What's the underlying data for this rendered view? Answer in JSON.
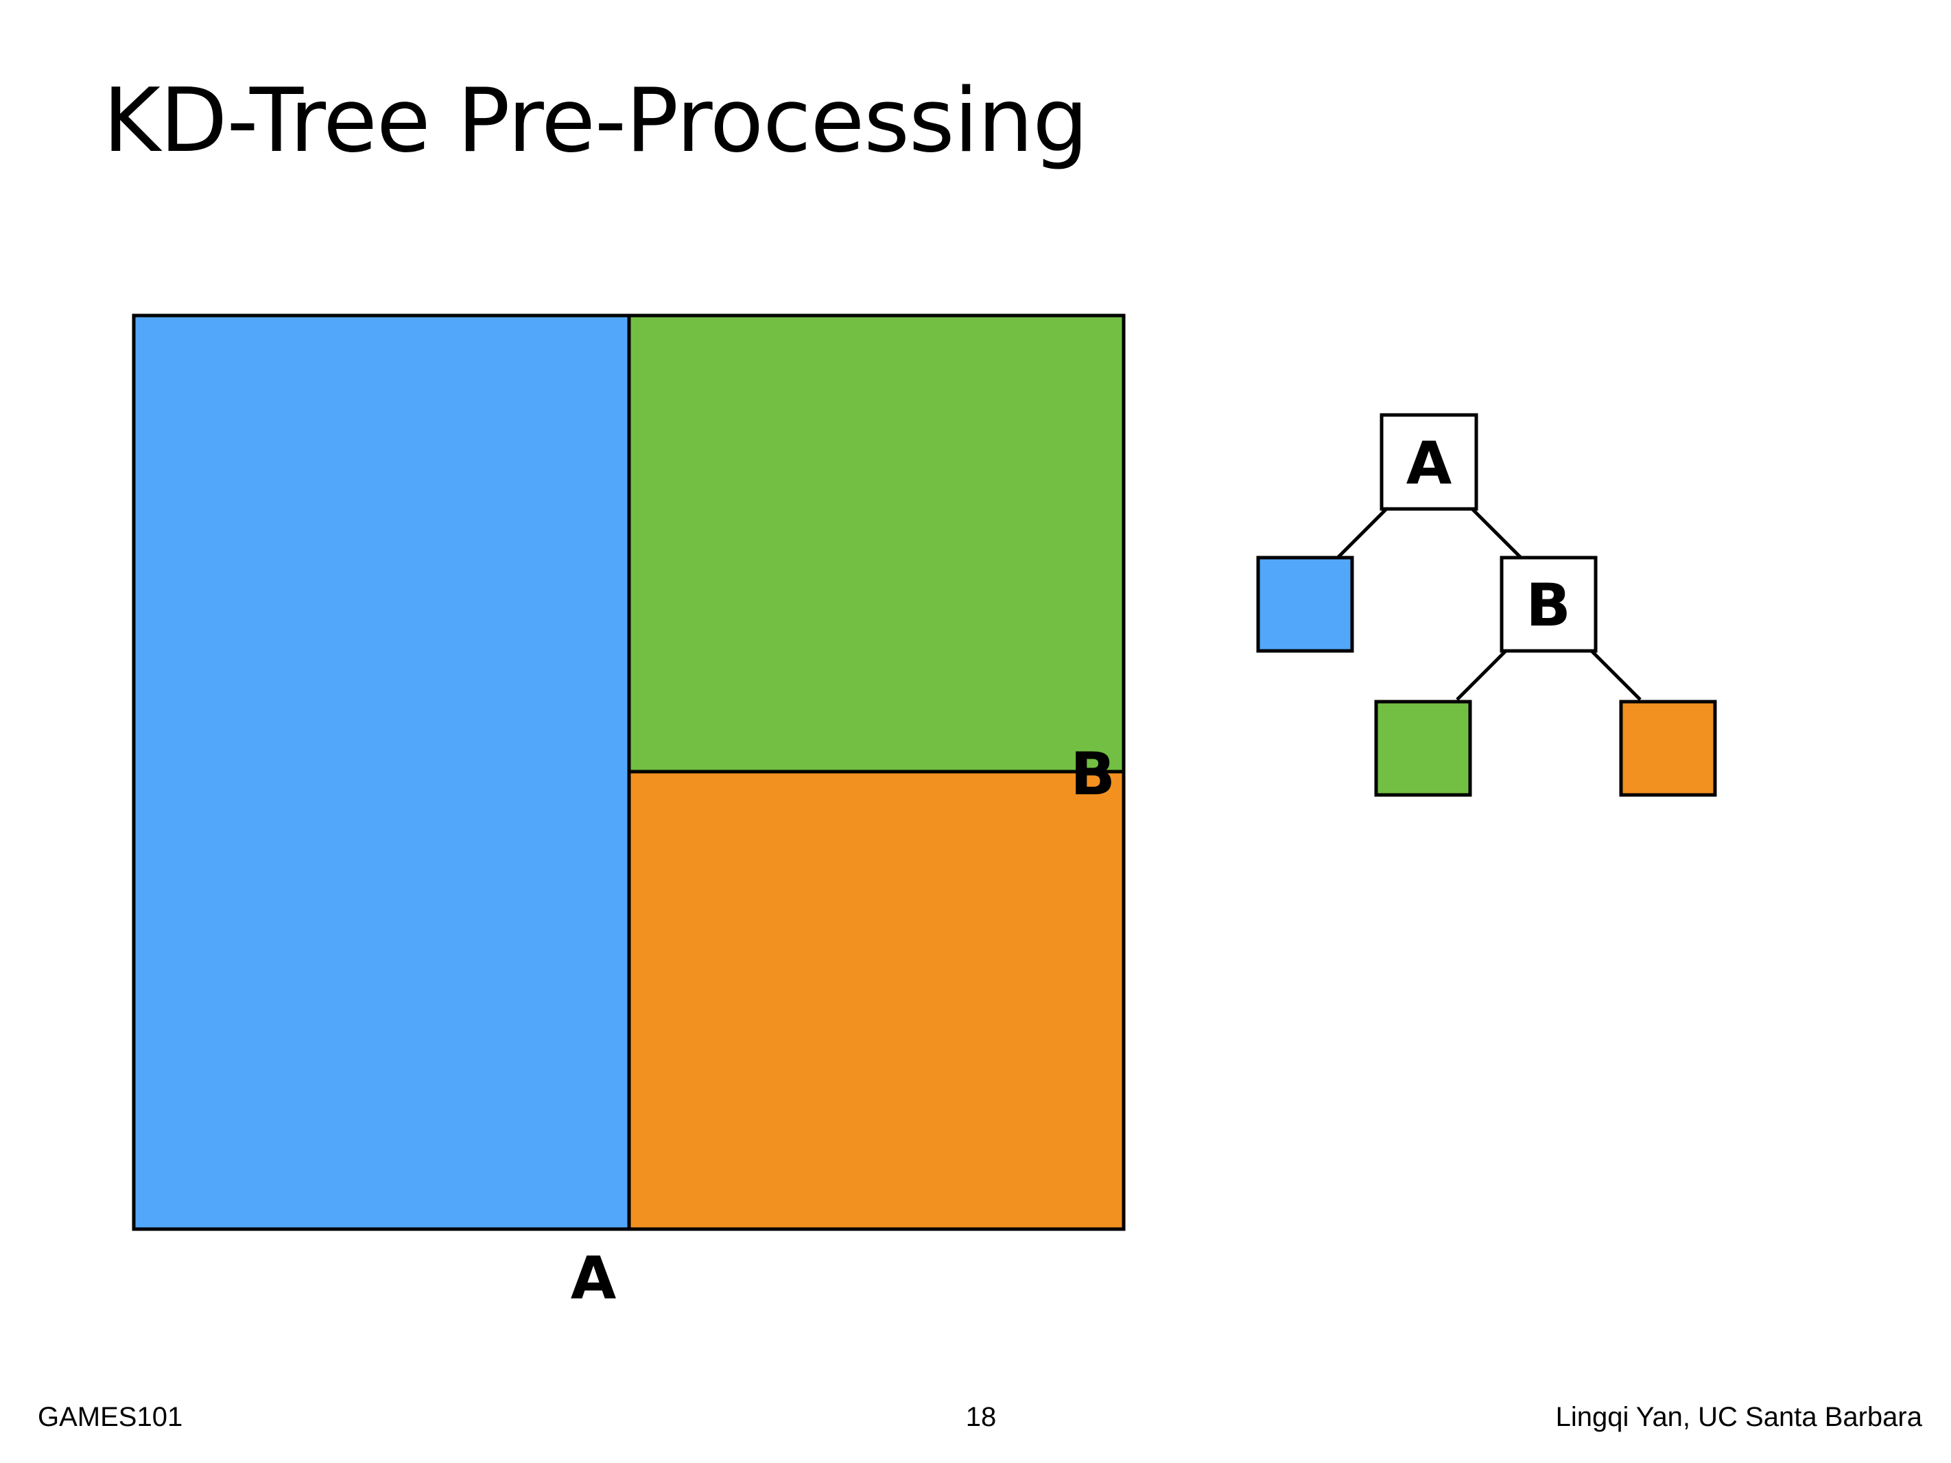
{
  "slide": {
    "title": "KD-Tree Pre-Processing"
  },
  "colors": {
    "region_left": "#52a7fa",
    "region_top_right": "#72bf44",
    "region_bottom_right": "#f29020",
    "stroke": "#000000",
    "node_fill": "#ffffff"
  },
  "diagram": {
    "split_a_label": "A",
    "split_b_label": "B",
    "tree": {
      "root_label": "A",
      "inner_label": "B"
    }
  },
  "footer": {
    "course": "GAMES101",
    "page_number": "18",
    "author": "Lingqi Yan, UC Santa Barbara"
  }
}
